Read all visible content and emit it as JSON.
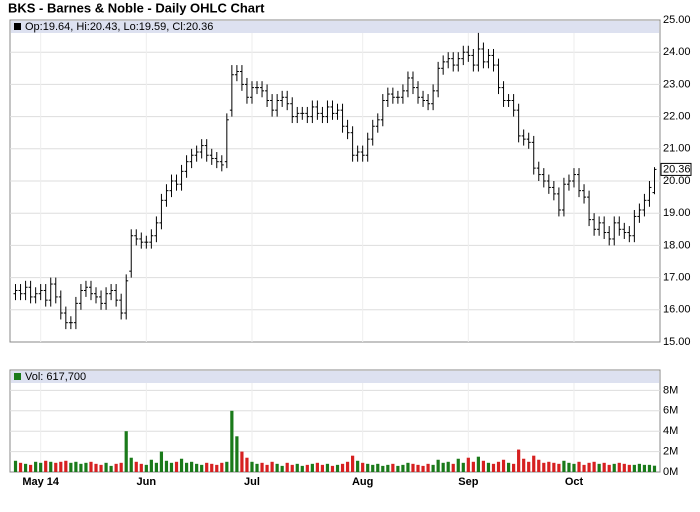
{
  "chart_data": {
    "type": "ohlc",
    "title": "BKS - Barnes & Noble - Daily OHLC Chart",
    "price_legend": "Op:19.64, Hi:20.43, Lo:19.59, Cl:20.36",
    "volume_legend": "Vol: 617,700",
    "up_color": "#1a7a1a",
    "down_color": "#d62020",
    "bar_color": "#000000",
    "grid": true,
    "categories": [
      null,
      null,
      null,
      null,
      null,
      "May 14",
      null,
      null,
      null,
      null,
      null,
      null,
      null,
      null,
      null,
      null,
      null,
      null,
      null,
      null,
      null,
      null,
      null,
      null,
      null,
      null,
      "Jun",
      null,
      null,
      null,
      null,
      null,
      null,
      null,
      null,
      null,
      null,
      null,
      null,
      null,
      null,
      null,
      null,
      null,
      null,
      null,
      null,
      "Jul",
      null,
      null,
      null,
      null,
      null,
      null,
      null,
      null,
      null,
      null,
      null,
      null,
      null,
      null,
      null,
      null,
      null,
      null,
      null,
      null,
      null,
      "Aug",
      null,
      null,
      null,
      null,
      null,
      null,
      null,
      null,
      null,
      null,
      null,
      null,
      null,
      null,
      null,
      null,
      null,
      null,
      null,
      null,
      "Sep",
      null,
      null,
      null,
      null,
      null,
      null,
      null,
      null,
      null,
      null,
      null,
      null,
      null,
      null,
      null,
      null,
      null,
      null,
      null,
      null,
      "Oct",
      null,
      null,
      null,
      null,
      null,
      null,
      null,
      null,
      null,
      null,
      null,
      null,
      null,
      null,
      null,
      null
    ],
    "open": [
      16.5,
      16.6,
      16.5,
      16.7,
      16.4,
      16.5,
      16.6,
      16.3,
      16.8,
      16.4,
      15.9,
      15.6,
      15.6,
      16.2,
      16.6,
      16.7,
      16.5,
      16.4,
      16.2,
      16.5,
      16.6,
      16.3,
      15.9,
      17.2,
      18.3,
      18.2,
      18.1,
      18.1,
      18.3,
      18.7,
      19.4,
      19.7,
      20.0,
      19.9,
      20.3,
      20.6,
      20.8,
      20.9,
      21.1,
      20.8,
      20.7,
      20.6,
      20.6,
      22.2,
      23.3,
      23.4,
      23.0,
      22.6,
      22.9,
      22.9,
      22.8,
      22.5,
      22.2,
      22.5,
      22.6,
      22.4,
      22.0,
      22.1,
      22.1,
      22.0,
      22.3,
      22.1,
      22.0,
      22.3,
      22.1,
      22.2,
      21.7,
      21.5,
      20.8,
      20.9,
      20.8,
      21.3,
      21.7,
      21.9,
      22.5,
      22.7,
      22.6,
      22.6,
      22.8,
      23.2,
      22.9,
      22.6,
      22.5,
      22.4,
      22.8,
      23.5,
      23.7,
      23.8,
      23.6,
      23.8,
      24.0,
      23.9,
      23.6,
      24.1,
      23.7,
      23.9,
      23.6,
      22.9,
      22.5,
      22.5,
      22.2,
      21.4,
      21.3,
      21.2,
      20.4,
      20.2,
      20.0,
      19.8,
      19.6,
      19.1,
      19.9,
      20.0,
      20.2,
      19.7,
      19.5,
      18.8,
      18.5,
      18.7,
      18.4,
      18.2,
      18.7,
      18.5,
      18.4,
      18.3,
      18.9,
      19.1,
      19.4,
      19.64
    ],
    "high": [
      16.8,
      16.8,
      16.9,
      16.9,
      16.7,
      16.8,
      16.8,
      17.0,
      17.0,
      16.6,
      16.1,
      15.8,
      16.4,
      16.8,
      16.9,
      16.9,
      16.7,
      16.6,
      16.7,
      16.8,
      16.8,
      16.5,
      17.1,
      18.5,
      18.5,
      18.4,
      18.3,
      18.5,
      18.9,
      19.6,
      19.9,
      20.2,
      20.2,
      20.5,
      20.8,
      21.0,
      21.1,
      21.3,
      21.3,
      21.0,
      20.9,
      20.8,
      22.1,
      23.6,
      23.6,
      23.6,
      23.2,
      23.1,
      23.1,
      23.1,
      23.0,
      22.7,
      22.7,
      22.8,
      22.8,
      22.6,
      22.3,
      22.3,
      22.3,
      22.5,
      22.5,
      22.3,
      22.5,
      22.5,
      22.4,
      22.4,
      21.9,
      21.7,
      21.1,
      21.1,
      21.5,
      21.9,
      22.1,
      22.7,
      22.9,
      22.9,
      22.8,
      23.0,
      23.4,
      23.4,
      23.1,
      22.8,
      22.7,
      23.0,
      23.7,
      23.9,
      24.0,
      24.0,
      24.0,
      24.2,
      24.2,
      24.1,
      24.6,
      24.3,
      24.1,
      24.1,
      23.8,
      23.1,
      22.7,
      22.7,
      22.4,
      21.6,
      21.5,
      21.4,
      20.6,
      20.4,
      20.2,
      20.0,
      19.8,
      20.1,
      20.2,
      20.4,
      20.4,
      19.9,
      19.7,
      19.0,
      18.9,
      18.9,
      18.6,
      18.9,
      18.9,
      18.7,
      18.6,
      19.1,
      19.3,
      19.6,
      20.0,
      20.43
    ],
    "low": [
      16.3,
      16.3,
      16.3,
      16.2,
      16.2,
      16.3,
      16.1,
      16.1,
      16.2,
      15.7,
      15.4,
      15.4,
      15.4,
      16.0,
      16.4,
      16.3,
      16.2,
      16.0,
      16.0,
      16.3,
      16.1,
      15.7,
      15.7,
      17.0,
      18.0,
      17.9,
      17.9,
      17.9,
      18.1,
      18.5,
      19.2,
      19.5,
      19.7,
      19.7,
      20.1,
      20.4,
      20.6,
      20.7,
      20.6,
      20.5,
      20.4,
      20.3,
      20.4,
      22.0,
      23.1,
      22.8,
      22.4,
      22.4,
      22.7,
      22.6,
      22.3,
      22.0,
      22.0,
      22.3,
      22.2,
      21.8,
      21.8,
      21.9,
      21.8,
      21.8,
      21.9,
      21.8,
      21.8,
      21.9,
      21.9,
      21.5,
      21.3,
      20.6,
      20.6,
      20.6,
      20.6,
      21.1,
      21.5,
      21.7,
      22.3,
      22.4,
      22.4,
      22.4,
      22.6,
      22.7,
      22.4,
      22.3,
      22.2,
      22.2,
      22.6,
      23.3,
      23.5,
      23.4,
      23.4,
      23.6,
      23.7,
      23.4,
      23.4,
      23.5,
      23.5,
      23.4,
      22.7,
      22.3,
      22.3,
      22.0,
      21.2,
      21.1,
      21.0,
      20.2,
      20.0,
      19.8,
      19.6,
      19.4,
      18.9,
      18.9,
      19.7,
      19.8,
      19.5,
      19.3,
      18.6,
      18.3,
      18.3,
      18.2,
      18.0,
      18.0,
      18.3,
      18.2,
      18.1,
      18.1,
      18.7,
      18.9,
      19.2,
      19.59
    ],
    "close": [
      16.6,
      16.5,
      16.7,
      16.4,
      16.5,
      16.6,
      16.3,
      16.8,
      16.4,
      15.9,
      15.6,
      15.6,
      16.2,
      16.6,
      16.7,
      16.5,
      16.4,
      16.2,
      16.5,
      16.6,
      16.3,
      15.9,
      16.9,
      18.3,
      18.2,
      18.1,
      18.1,
      18.3,
      18.7,
      19.4,
      19.7,
      20.0,
      19.9,
      20.3,
      20.6,
      20.8,
      20.9,
      21.1,
      20.8,
      20.7,
      20.6,
      20.5,
      21.9,
      23.3,
      23.4,
      23.0,
      22.6,
      22.9,
      22.9,
      22.8,
      22.5,
      22.2,
      22.5,
      22.6,
      22.4,
      22.0,
      22.1,
      22.1,
      22.0,
      22.3,
      22.1,
      22.0,
      22.3,
      22.1,
      22.2,
      21.7,
      21.5,
      20.8,
      20.9,
      20.8,
      21.3,
      21.7,
      21.9,
      22.5,
      22.7,
      22.6,
      22.6,
      22.8,
      23.2,
      22.9,
      22.6,
      22.5,
      22.4,
      22.8,
      23.5,
      23.7,
      23.8,
      23.6,
      23.8,
      24.0,
      23.9,
      23.6,
      24.1,
      23.7,
      23.9,
      23.6,
      22.9,
      22.5,
      22.5,
      22.2,
      21.4,
      21.3,
      21.2,
      20.4,
      20.2,
      20.0,
      19.8,
      19.6,
      19.1,
      19.9,
      20.0,
      20.2,
      19.7,
      19.5,
      18.8,
      18.5,
      18.7,
      18.4,
      18.2,
      18.7,
      18.5,
      18.4,
      18.3,
      18.9,
      19.1,
      19.4,
      19.8,
      20.36
    ],
    "volume": [
      1100000,
      900000,
      800000,
      700000,
      1000000,
      900000,
      1100000,
      1000000,
      900000,
      1000000,
      1100000,
      900000,
      1000000,
      800000,
      900000,
      1000000,
      800000,
      700000,
      900000,
      600000,
      800000,
      900000,
      4000000,
      1400000,
      1000000,
      800000,
      700000,
      1200000,
      900000,
      2000000,
      1100000,
      900000,
      1000000,
      1300000,
      900000,
      1000000,
      800000,
      700000,
      900000,
      800000,
      700000,
      900000,
      1000000,
      6000000,
      3500000,
      2000000,
      1400000,
      1000000,
      800000,
      900000,
      700000,
      1000000,
      800000,
      600000,
      900000,
      700000,
      800000,
      600000,
      700000,
      800000,
      900000,
      700000,
      800000,
      600000,
      700000,
      800000,
      1000000,
      1600000,
      1100000,
      900000,
      800000,
      700000,
      800000,
      600000,
      700000,
      800000,
      600000,
      700000,
      900000,
      800000,
      700000,
      600000,
      800000,
      700000,
      1200000,
      900000,
      1000000,
      800000,
      1300000,
      900000,
      1400000,
      1000000,
      1500000,
      1100000,
      900000,
      800000,
      1000000,
      1200000,
      900000,
      800000,
      2200000,
      1300000,
      1000000,
      1600000,
      1200000,
      900000,
      1000000,
      900000,
      800000,
      1100000,
      900000,
      800000,
      1000000,
      700000,
      900000,
      1000000,
      800000,
      900000,
      700000,
      800000,
      900000,
      800000,
      700000,
      700000,
      800000,
      700000,
      700000,
      617700
    ],
    "ylim": [
      15,
      25
    ],
    "yticks": [
      {
        "value": 15,
        "label": "15.00"
      },
      {
        "value": 16,
        "label": "16.00"
      },
      {
        "value": 17,
        "label": "17.00"
      },
      {
        "value": 18,
        "label": "18.00"
      },
      {
        "value": 19,
        "label": "19.00"
      },
      {
        "value": 20,
        "label": "20.00"
      },
      {
        "value": 21,
        "label": "21.00"
      },
      {
        "value": 22,
        "label": "22.00"
      },
      {
        "value": 23,
        "label": "23.00"
      },
      {
        "value": 24,
        "label": "24.00"
      },
      {
        "value": 25,
        "label": "25.00"
      }
    ],
    "vlim": [
      0,
      10000000
    ],
    "vticks": [
      {
        "value": 0,
        "label": "0M"
      },
      {
        "value": 2000000,
        "label": "2M"
      },
      {
        "value": 4000000,
        "label": "4M"
      },
      {
        "value": 6000000,
        "label": "6M"
      },
      {
        "value": 8000000,
        "label": "8M"
      }
    ]
  }
}
